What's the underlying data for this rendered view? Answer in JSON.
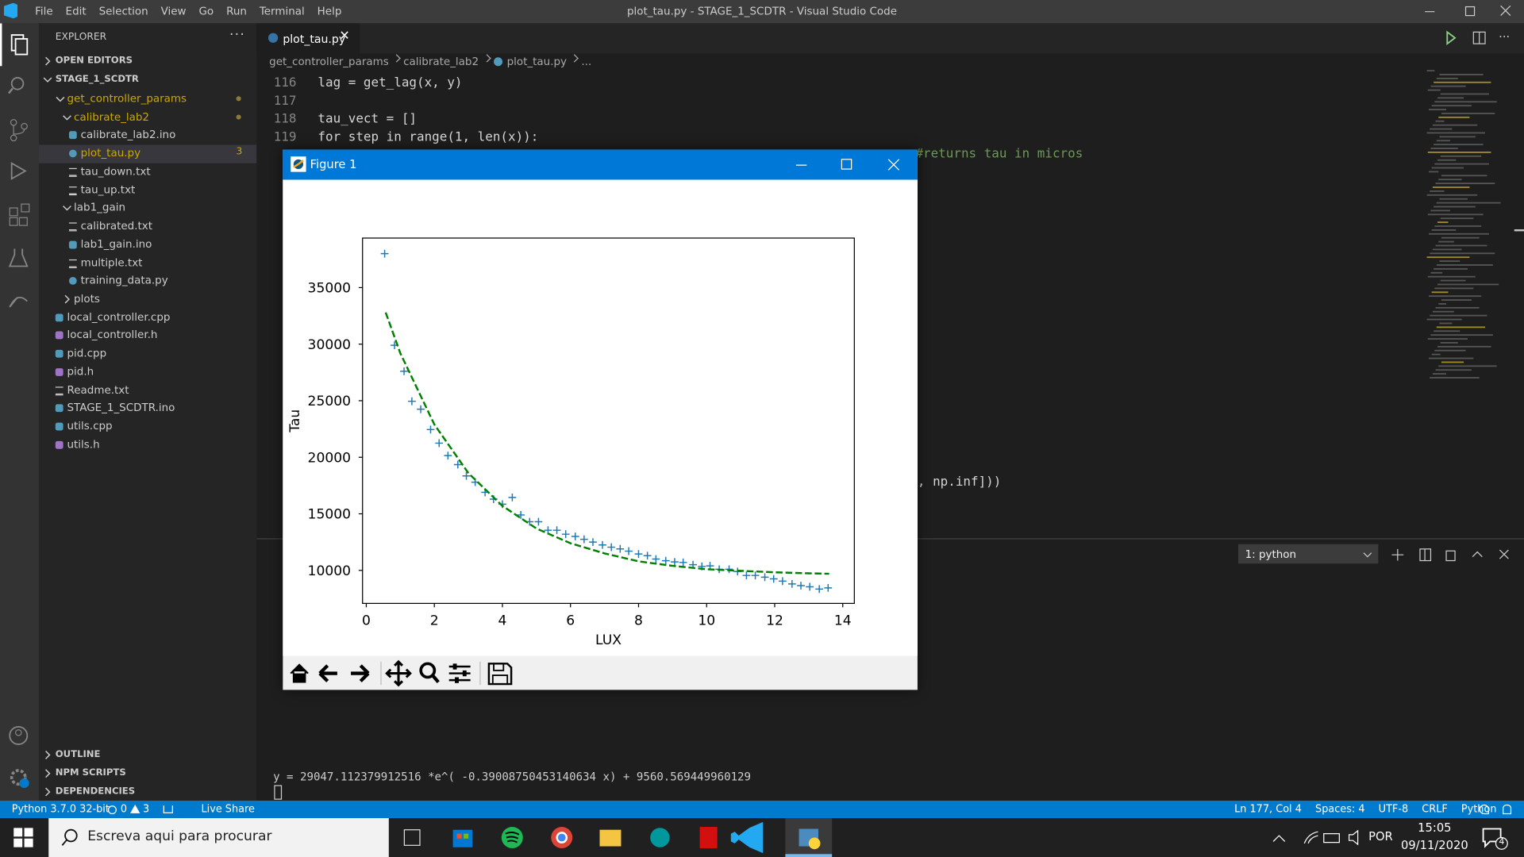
{
  "title_bar": {
    "menu": [
      "File",
      "Edit",
      "Selection",
      "View",
      "Go",
      "Run",
      "Terminal",
      "Help"
    ],
    "title": "plot_tau.py - STAGE_1_SCDTR - Visual Studio Code"
  },
  "explorer": {
    "title": "EXPLORER",
    "open_editors": "OPEN EDITORS",
    "folder": "STAGE_1_SCDTR",
    "tree": [
      {
        "label": "get_controller_params",
        "modified": true,
        "children": [
          {
            "label": "calibrate_lab2",
            "modified": true,
            "children": [
              {
                "label": "calibrate_lab2.ino"
              },
              {
                "label": "plot_tau.py",
                "badge": 3,
                "selected": true
              },
              {
                "label": "tau_down.txt"
              },
              {
                "label": "tau_up.txt"
              }
            ]
          },
          {
            "label": "lab1_gain",
            "children": [
              {
                "label": "calibrated.txt"
              },
              {
                "label": "lab1_gain.ino"
              },
              {
                "label": "multiple.txt"
              },
              {
                "label": "training_data.py"
              }
            ]
          },
          {
            "label": "plots",
            "collapsed": true
          }
        ]
      },
      {
        "label": "local_controller.cpp"
      },
      {
        "label": "local_controller.h"
      },
      {
        "label": "pid.cpp"
      },
      {
        "label": "pid.h"
      },
      {
        "label": "Readme.txt"
      },
      {
        "label": "STAGE_1_SCDTR.ino"
      },
      {
        "label": "utils.cpp"
      },
      {
        "label": "utils.h"
      }
    ],
    "sections": [
      "OUTLINE",
      "NPM SCRIPTS",
      "DEPENDENCIES"
    ]
  },
  "editor": {
    "tab": "plot_tau.py",
    "breadcrumb": [
      "get_controller_params",
      "calibrate_lab2",
      "plot_tau.py",
      "..."
    ],
    "lines": [
      {
        "number": 116,
        "code": "lag = get_lag(x, y)"
      },
      {
        "number": 117
      },
      {
        "number": 118,
        "code": "tau_vect = []"
      },
      {
        "number": 119,
        "code": "for step in range(1, len(x)):"
      }
    ],
    "fragments": [
      "#returns tau in micros",
      ", np.inf]))"
    ]
  },
  "panel": {
    "terminal_select": "1: python",
    "output": "y =  29047.112379912516 *e^( -0.39008750453140634 x) +  9560.569449960129"
  },
  "status_bar": {
    "interpreter": "Python 3.7.0 32-bit",
    "errors": 0,
    "warnings": 3,
    "live_share": "Live Share",
    "right": [
      "Ln 177, Col 4",
      "Spaces: 4",
      "UTF-8",
      "CRLF",
      "Python"
    ]
  },
  "taskbar": {
    "search": "Escreva aqui para procurar",
    "language": "POR",
    "time": "15:05",
    "date": "09/11/2020",
    "notifications": 4
  },
  "figure": {
    "title": "Figure 1",
    "chart_data": {
      "type": "scatter",
      "x_label": "LUX",
      "y_label": "Tau",
      "xlim": [
        -0.11,
        14.34
      ],
      "ylim": [
        7080,
        39380
      ],
      "xticks": [
        0,
        2,
        4,
        6,
        8,
        10,
        12,
        14
      ],
      "yticks": [
        10000,
        15000,
        20000,
        25000,
        30000,
        35000
      ],
      "series": [
        {
          "type": "scatter",
          "marker": "+",
          "color": "#1f77b4",
          "x": [
            0.54,
            0.83,
            1.11,
            1.34,
            1.6,
            1.89,
            2.14,
            2.4,
            2.69,
            2.94,
            3.2,
            3.49,
            3.74,
            4.0,
            4.29,
            4.54,
            4.8,
            5.06,
            5.34,
            5.6,
            5.86,
            6.14,
            6.4,
            6.66,
            6.94,
            7.2,
            7.46,
            7.71,
            8.0,
            8.26,
            8.51,
            8.8,
            9.06,
            9.31,
            9.6,
            9.86,
            10.1,
            10.37,
            10.66,
            10.91,
            11.17,
            11.43,
            11.71,
            11.97,
            12.23,
            12.51,
            12.77,
            13.03,
            13.31,
            13.57
          ],
          "values": [
            38000,
            29900,
            27600,
            24950,
            24250,
            22450,
            21250,
            20150,
            19350,
            18350,
            17800,
            16900,
            16300,
            15850,
            16450,
            14900,
            14300,
            14300,
            13550,
            13550,
            13200,
            13000,
            12750,
            12500,
            12250,
            12050,
            11900,
            11700,
            11450,
            11300,
            11000,
            10850,
            10750,
            10700,
            10500,
            10350,
            10400,
            10100,
            10100,
            9900,
            9550,
            9550,
            9400,
            9250,
            9050,
            8800,
            8650,
            8550,
            8350,
            8450
          ]
        },
        {
          "type": "line",
          "style": "dashed",
          "color": "#008000",
          "x": [
            0.57,
            1,
            2,
            3,
            4,
            5,
            6,
            7,
            8,
            9,
            10,
            11,
            12,
            13,
            13.6
          ],
          "values": [
            32800,
            29200,
            22900,
            18600,
            15700,
            13700,
            12400,
            11500,
            10800,
            10400,
            10100,
            9960,
            9830,
            9740,
            9700
          ]
        }
      ]
    }
  }
}
